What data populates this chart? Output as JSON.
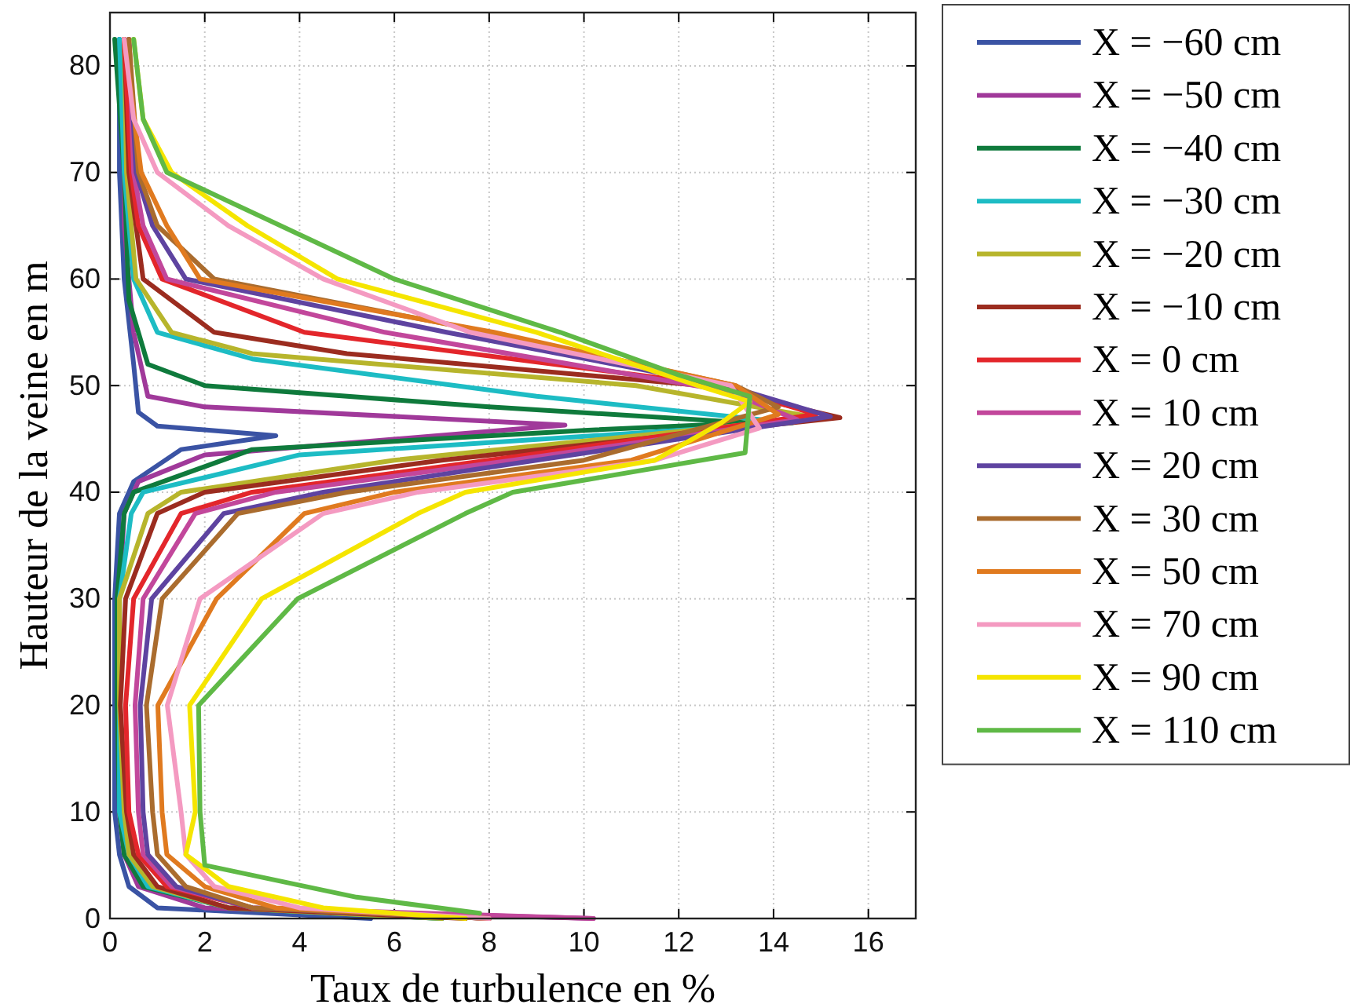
{
  "chart_data": {
    "type": "line",
    "xlabel": "Taux de turbulence en %",
    "ylabel": "Hauteur de la veine en m",
    "xlim": [
      0,
      17
    ],
    "ylim": [
      0,
      85
    ],
    "xticks": [
      0,
      2,
      4,
      6,
      8,
      10,
      12,
      14,
      16
    ],
    "yticks": [
      0,
      10,
      20,
      30,
      40,
      50,
      60,
      70,
      80
    ],
    "grid": true,
    "legend": "right",
    "marker": "none",
    "line_style": "solid",
    "series": [
      {
        "name": "X = −60 cm",
        "color": "#3a53a4",
        "x": [
          5.5,
          1.0,
          0.4,
          0.2,
          0.1,
          0.1,
          0.1,
          0.2,
          0.5,
          1.5,
          3.5,
          1.0,
          0.6,
          0.5,
          0.3,
          0.2,
          0.2
        ],
        "values": [
          0,
          1,
          3,
          6,
          10,
          20,
          30,
          38,
          41,
          44,
          45.3,
          46.2,
          47.5,
          52,
          60,
          70,
          82.5
        ]
      },
      {
        "name": "X = −50 cm",
        "color": "#a0399a",
        "x": [
          10.2,
          2,
          0.6,
          0.3,
          0.2,
          0.2,
          0.2,
          0.3,
          0.6,
          2,
          9.6,
          2,
          0.8,
          0.5,
          0.3,
          0.3
        ],
        "values": [
          0,
          1,
          3,
          6,
          10,
          20,
          30,
          38,
          41,
          43.5,
          46.3,
          48,
          49,
          55,
          65,
          82.5
        ]
      },
      {
        "name": "X = −40 cm",
        "color": "#0f7a3c",
        "x": [
          7,
          2.5,
          0.7,
          0.3,
          0.2,
          0.15,
          0.15,
          0.3,
          0.5,
          3,
          10,
          13.5,
          8,
          2,
          0.8,
          0.4,
          0.3,
          0.1
        ],
        "values": [
          0,
          1,
          3,
          6,
          10,
          20,
          30,
          38,
          40,
          44,
          45.8,
          46.5,
          48,
          50,
          52,
          58,
          70,
          82.5
        ]
      },
      {
        "name": "X = −30 cm",
        "color": "#1dbcc4",
        "x": [
          7,
          2.5,
          0.8,
          0.4,
          0.2,
          0.2,
          0.2,
          0.45,
          0.7,
          4,
          14.4,
          9,
          3,
          1,
          0.5,
          0.3,
          0.2
        ],
        "values": [
          0,
          1,
          3,
          6,
          10,
          20,
          30,
          38,
          40,
          43.5,
          46.5,
          49,
          52.5,
          55,
          60,
          70,
          82.5
        ]
      },
      {
        "name": "X = −20 cm",
        "color": "#b7b52c",
        "x": [
          7,
          2.5,
          0.9,
          0.4,
          0.3,
          0.2,
          0.2,
          0.8,
          1.5,
          6,
          14.9,
          11.1,
          3,
          1.3,
          0.55,
          0.35,
          0.3
        ],
        "values": [
          0,
          1,
          3,
          6,
          10,
          20,
          30,
          38,
          40,
          43,
          47,
          50,
          53,
          55,
          60,
          70,
          82.5
        ]
      },
      {
        "name": "X = −10 cm",
        "color": "#9b2c1f",
        "x": [
          7.5,
          2.5,
          1.0,
          0.5,
          0.35,
          0.22,
          0.33,
          1.0,
          2.0,
          7,
          15.4,
          12.5,
          5,
          2.2,
          0.7,
          0.4,
          0.3
        ],
        "values": [
          0,
          1,
          3,
          6,
          10,
          20,
          30,
          38,
          40,
          43,
          47,
          50,
          53,
          55,
          60,
          70,
          82.5
        ]
      },
      {
        "name": "X = 0 cm",
        "color": "#e3262b",
        "x": [
          8,
          3,
          1.2,
          0.6,
          0.4,
          0.33,
          0.5,
          1.5,
          3,
          8,
          14.9,
          12.9,
          4.1,
          1.1,
          0.6,
          0.45,
          0.3
        ],
        "values": [
          0,
          1,
          3,
          6,
          10,
          20,
          30,
          38,
          40,
          43,
          47.3,
          50,
          55,
          60,
          65,
          70,
          82.5
        ]
      },
      {
        "name": "X = 10 cm",
        "color": "#c2479b",
        "x": [
          10.2,
          3,
          1.3,
          0.7,
          0.6,
          0.53,
          0.7,
          1.8,
          3.5,
          8.5,
          14.5,
          13,
          5.8,
          1.2,
          0.7,
          0.5,
          0.4
        ],
        "values": [
          0,
          1,
          3,
          6,
          10,
          20,
          30,
          38,
          40,
          43,
          46.8,
          49.5,
          55,
          60,
          65,
          70,
          82.5
        ]
      },
      {
        "name": "X = 20 cm",
        "color": "#5e43a0",
        "x": [
          8,
          3,
          1.4,
          0.8,
          0.7,
          0.64,
          0.88,
          2.4,
          4.5,
          9,
          15.2,
          13,
          7.1,
          1.6,
          0.9,
          0.55,
          0.4
        ],
        "values": [
          0,
          1,
          3,
          6,
          10,
          20,
          30,
          38,
          40,
          43,
          47.1,
          50,
          55,
          60,
          65,
          70,
          82.5
        ]
      },
      {
        "name": "X = 30 cm",
        "color": "#aa6c2e",
        "x": [
          8,
          3,
          1.6,
          1.0,
          0.9,
          0.77,
          1.1,
          2.7,
          5,
          10,
          14.1,
          13.2,
          8,
          2.2,
          1,
          0.6,
          0.4
        ],
        "values": [
          0,
          1,
          3,
          6,
          10,
          20,
          30,
          38,
          40,
          43,
          48,
          50,
          55,
          60,
          65,
          70,
          82.5
        ]
      },
      {
        "name": "X = 50 cm",
        "color": "#e07a1f",
        "x": [
          8,
          3.5,
          2,
          1.2,
          1.1,
          1.01,
          2.25,
          4.1,
          6,
          11,
          14.1,
          13.2,
          8.1,
          1.9,
          1.2,
          0.66,
          0.3
        ],
        "values": [
          0,
          1,
          3,
          6,
          10,
          20,
          30,
          38,
          40,
          43,
          47.3,
          50,
          55,
          60,
          65,
          70,
          82.5
        ]
      },
      {
        "name": "X = 70 cm",
        "color": "#f49ac1",
        "x": [
          8,
          4,
          2.2,
          1.6,
          1.5,
          1.21,
          1.9,
          4.5,
          6.5,
          11.5,
          13.7,
          13.1,
          7.6,
          4.5,
          2.5,
          1,
          0.5,
          0.3
        ],
        "values": [
          0,
          1,
          3,
          6,
          10,
          20,
          30,
          38,
          40,
          43,
          46,
          50,
          55,
          60,
          65,
          70,
          75,
          82.5
        ]
      },
      {
        "name": "X = 90 cm",
        "color": "#f5e500",
        "x": [
          7.5,
          4.5,
          2.5,
          1.6,
          1.8,
          1.68,
          3.2,
          6.5,
          7.5,
          11.5,
          12.9,
          13.5,
          12.4,
          9,
          4.8,
          2.9,
          1.3,
          0.7,
          0.5
        ],
        "values": [
          0,
          1,
          3,
          6,
          10,
          20,
          30,
          38,
          40,
          43,
          46.5,
          48.5,
          50,
          55,
          60,
          65,
          70,
          75,
          82.5
        ]
      },
      {
        "name": "X = 110 cm",
        "color": "#5fb946",
        "x": [
          7.8,
          5.2,
          2,
          1.9,
          1.87,
          3.96,
          7.5,
          8.5,
          13.4,
          13.5,
          12,
          9.5,
          6,
          3.6,
          1.2,
          0.7,
          0.5
        ],
        "values": [
          0.5,
          2,
          5,
          10,
          20,
          30,
          38,
          40,
          43.7,
          49,
          51,
          55,
          60,
          65,
          70,
          75,
          82.5
        ]
      }
    ]
  }
}
